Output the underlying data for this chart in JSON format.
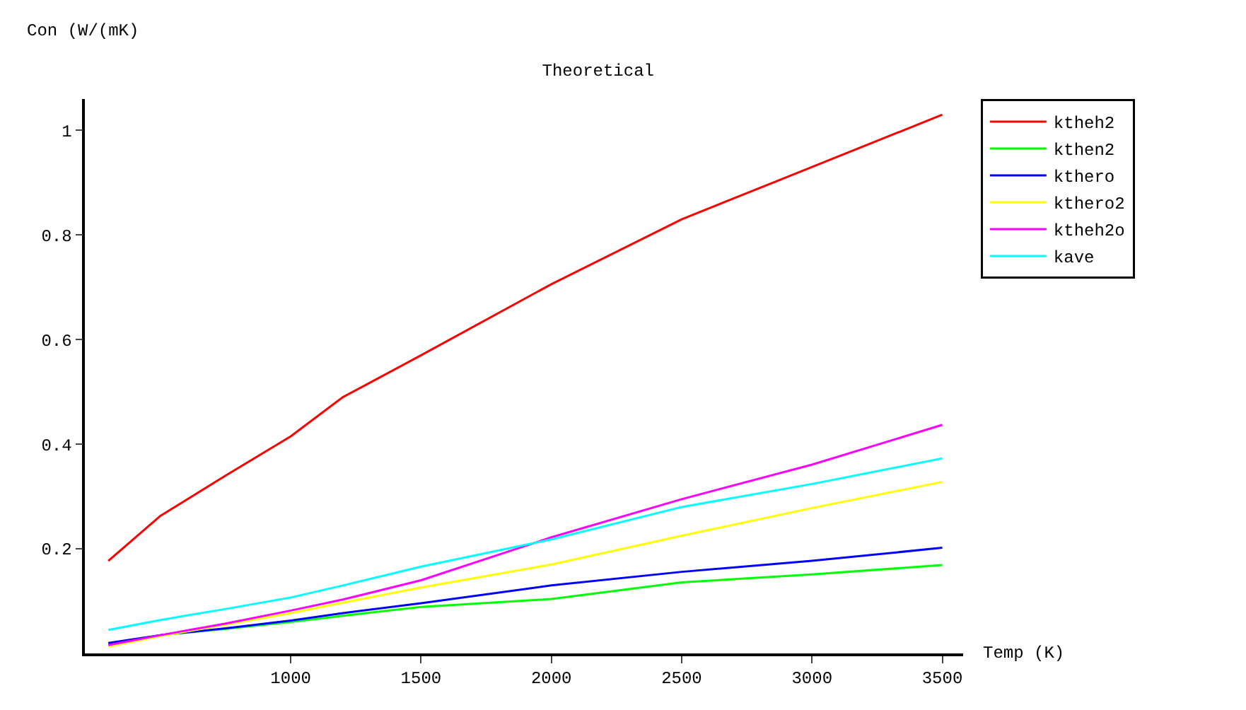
{
  "chart_data": {
    "type": "line",
    "title": "Theoretical",
    "xlabel": "Temp (K)",
    "ylabel": "Con (W/(mK)",
    "x": [
      300,
      500,
      750,
      1000,
      1200,
      1500,
      2000,
      2500,
      3000,
      3500
    ],
    "xlim": [
      210,
      3580
    ],
    "ylim": [
      0,
      1.06
    ],
    "xticks": [
      1000,
      1500,
      2000,
      2500,
      3000,
      3500
    ],
    "yticks": [
      0.2,
      0.4,
      0.6,
      0.8,
      1
    ],
    "grid": false,
    "legend": "top right",
    "marker": "none",
    "line_style": "solid",
    "series": [
      {
        "name": "ktheh2",
        "color": "#ff0000",
        "values": [
          0.177,
          0.263,
          0.34,
          0.415,
          0.49,
          0.57,
          0.706,
          0.83,
          0.93,
          1.03
        ]
      },
      {
        "name": "kthen2",
        "color": "#00ff00",
        "values": [
          0.018,
          0.035,
          0.047,
          0.06,
          0.072,
          0.089,
          0.104,
          0.136,
          0.151,
          0.169
        ]
      },
      {
        "name": "kthero",
        "color": "#0000ff",
        "values": [
          0.02,
          0.035,
          0.048,
          0.063,
          0.077,
          0.096,
          0.13,
          0.156,
          0.177,
          0.202
        ]
      },
      {
        "name": "kthero2",
        "color": "#ffff00",
        "values": [
          0.013,
          0.033,
          0.055,
          0.077,
          0.097,
          0.126,
          0.17,
          0.225,
          0.278,
          0.328
        ]
      },
      {
        "name": "ktheh2o",
        "color": "#ff00ff",
        "values": [
          0.016,
          0.035,
          0.057,
          0.082,
          0.103,
          0.14,
          0.222,
          0.295,
          0.361,
          0.437
        ]
      },
      {
        "name": "kave",
        "color": "#00ffff",
        "values": [
          0.045,
          0.064,
          0.085,
          0.107,
          0.13,
          0.166,
          0.218,
          0.28,
          0.324,
          0.373
        ]
      }
    ]
  }
}
